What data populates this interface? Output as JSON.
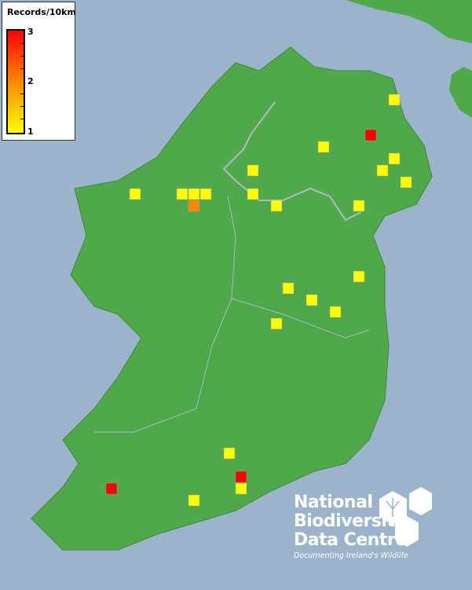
{
  "legend": {
    "title": "Records/10km",
    "max_label": "3",
    "mid_label": "2",
    "min_label": "1",
    "colors": {
      "low": "#ffff00",
      "mid": "#ff8800",
      "high": "#ff0000"
    }
  },
  "colors": {
    "sea": "#9bb3cb",
    "land": "#4fa94a",
    "boundary": "#b0b8c8"
  },
  "records": [
    1,
    3,
    1,
    1,
    1,
    1,
    1,
    1,
    1,
    1,
    1,
    2,
    1,
    1,
    1,
    1,
    1,
    1,
    1,
    1,
    1,
    3,
    1,
    3,
    1
  ],
  "logo": {
    "line1": "National",
    "line2": "Biodiversity",
    "line3": "Data Centre",
    "tagline": "Documenting Ireland's Wildlife"
  }
}
